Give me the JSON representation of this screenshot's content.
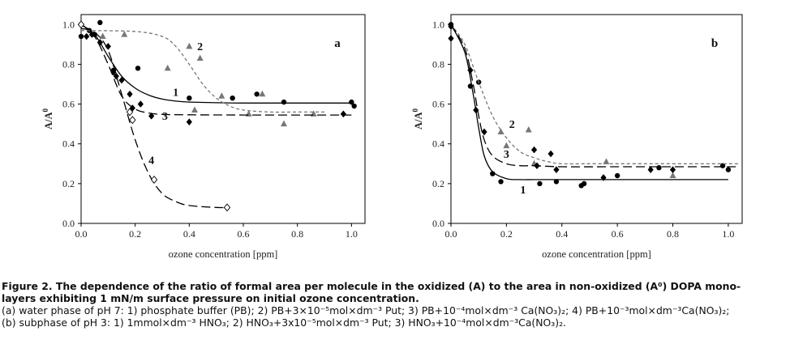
{
  "chart_data": [
    {
      "type": "scatter",
      "panel_label": "a",
      "xlabel": "ozone concentration [ppm]",
      "ylabel": "A/A",
      "ylabel_sup": "0",
      "xlim": [
        0,
        1.05
      ],
      "ylim": [
        0,
        1.05
      ],
      "xticks": [
        0.0,
        0.2,
        0.4,
        0.6,
        0.8,
        1.0
      ],
      "xtick_labels": [
        "0.0",
        "0.2",
        "0.4",
        "0.6",
        "0.8",
        "1.0"
      ],
      "yticks": [
        0.0,
        0.2,
        0.4,
        0.6,
        0.8,
        1.0
      ],
      "ytick_labels": [
        "0.0",
        "0.2",
        "0.4",
        "0.6",
        "0.8",
        "1.0"
      ],
      "grid": false,
      "series": [
        {
          "name": "1",
          "marker": "circle",
          "x": [
            0.0,
            0.03,
            0.05,
            0.07,
            0.12,
            0.21,
            0.4,
            0.56,
            0.65,
            0.75,
            1.0,
            1.01
          ],
          "y": [
            0.94,
            0.97,
            0.95,
            1.01,
            0.77,
            0.78,
            0.63,
            0.63,
            0.65,
            0.61,
            0.61,
            0.59
          ],
          "fit": {
            "x": [
              0.0,
              0.05,
              0.1,
              0.15,
              0.2,
              0.25,
              0.3,
              0.35,
              0.4,
              0.5,
              0.6,
              0.8,
              1.0
            ],
            "y": [
              1.0,
              0.95,
              0.84,
              0.74,
              0.68,
              0.645,
              0.625,
              0.615,
              0.61,
              0.607,
              0.605,
              0.605,
              0.605
            ]
          },
          "label_at": [
            0.35,
            0.64
          ],
          "line_style": "solid"
        },
        {
          "name": "2",
          "marker": "triangle",
          "x": [
            0.08,
            0.16,
            0.32,
            0.4,
            0.42,
            0.44,
            0.52,
            0.62,
            0.67,
            0.75,
            0.86
          ],
          "y": [
            0.94,
            0.95,
            0.78,
            0.89,
            0.57,
            0.83,
            0.64,
            0.55,
            0.65,
            0.5,
            0.55
          ],
          "fit": {
            "x": [
              0.0,
              0.2,
              0.3,
              0.35,
              0.4,
              0.45,
              0.5,
              0.55,
              0.6,
              0.7,
              0.8,
              0.9
            ],
            "y": [
              0.97,
              0.965,
              0.94,
              0.89,
              0.8,
              0.7,
              0.63,
              0.59,
              0.57,
              0.56,
              0.56,
              0.56
            ]
          },
          "label_at": [
            0.44,
            0.87
          ],
          "line_style": "short-dash"
        },
        {
          "name": "3",
          "marker": "diamond",
          "x": [
            0.02,
            0.04,
            0.07,
            0.1,
            0.12,
            0.13,
            0.15,
            0.18,
            0.19,
            0.22,
            0.26,
            0.4,
            0.97
          ],
          "y": [
            0.94,
            0.95,
            0.91,
            0.89,
            0.76,
            0.74,
            0.72,
            0.65,
            0.58,
            0.6,
            0.54,
            0.51,
            0.55
          ],
          "fit": {
            "x": [
              0.0,
              0.05,
              0.1,
              0.15,
              0.2,
              0.25,
              0.3,
              0.4,
              0.6,
              0.8,
              1.0
            ],
            "y": [
              1.0,
              0.94,
              0.8,
              0.64,
              0.575,
              0.555,
              0.548,
              0.546,
              0.545,
              0.545,
              0.545
            ]
          },
          "label_at": [
            0.31,
            0.52
          ],
          "line_style": "long-dash"
        },
        {
          "name": "4",
          "marker": "open-diamond",
          "x": [
            0.0,
            0.18,
            0.19,
            0.27,
            0.54
          ],
          "y": [
            1.0,
            0.56,
            0.52,
            0.22,
            0.08
          ],
          "fit": {
            "x": [
              0.0,
              0.05,
              0.1,
              0.15,
              0.2,
              0.25,
              0.3,
              0.35,
              0.4,
              0.5,
              0.54
            ],
            "y": [
              0.98,
              0.96,
              0.87,
              0.65,
              0.42,
              0.25,
              0.15,
              0.11,
              0.09,
              0.08,
              0.08
            ]
          },
          "label_at": [
            0.26,
            0.3
          ],
          "line_style": "long-dash"
        }
      ]
    },
    {
      "type": "scatter",
      "panel_label": "b",
      "xlabel": "ozone concentration [ppm]",
      "ylabel": "A/A",
      "ylabel_sup": "0",
      "xlim": [
        0,
        1.05
      ],
      "ylim": [
        0,
        1.05
      ],
      "xticks": [
        0.0,
        0.2,
        0.4,
        0.6,
        0.8,
        1.0
      ],
      "xtick_labels": [
        "0.0",
        "0.2",
        "0.4",
        "0.6",
        "0.8",
        "1.0"
      ],
      "yticks": [
        0.0,
        0.2,
        0.4,
        0.6,
        0.8,
        1.0
      ],
      "ytick_labels": [
        "0.0",
        "0.2",
        "0.4",
        "0.6",
        "0.8",
        "1.0"
      ],
      "grid": false,
      "series": [
        {
          "name": "1",
          "marker": "circle",
          "x": [
            0.0,
            0.07,
            0.1,
            0.15,
            0.18,
            0.32,
            0.38,
            0.47,
            0.48,
            0.6,
            0.75,
            0.98,
            1.0
          ],
          "y": [
            1.0,
            0.69,
            0.71,
            0.25,
            0.21,
            0.2,
            0.21,
            0.19,
            0.2,
            0.24,
            0.28,
            0.29,
            0.27
          ],
          "fit": {
            "x": [
              0.0,
              0.05,
              0.08,
              0.1,
              0.12,
              0.15,
              0.2,
              0.25,
              0.3,
              0.4,
              0.6,
              0.8,
              1.0
            ],
            "y": [
              1.0,
              0.86,
              0.65,
              0.48,
              0.34,
              0.26,
              0.225,
              0.22,
              0.22,
              0.22,
              0.22,
              0.22,
              0.22
            ]
          },
          "label_at": [
            0.26,
            0.15
          ],
          "line_style": "solid"
        },
        {
          "name": "2",
          "marker": "triangle",
          "x": [
            0.18,
            0.2,
            0.28,
            0.3,
            0.56,
            0.8
          ],
          "y": [
            0.46,
            0.39,
            0.47,
            0.3,
            0.31,
            0.24
          ],
          "fit": {
            "x": [
              0.0,
              0.05,
              0.1,
              0.15,
              0.2,
              0.25,
              0.3,
              0.35,
              0.4,
              0.5,
              0.7,
              0.9,
              1.04
            ],
            "y": [
              1.0,
              0.9,
              0.71,
              0.54,
              0.43,
              0.36,
              0.33,
              0.31,
              0.3,
              0.3,
              0.3,
              0.3,
              0.3
            ]
          },
          "label_at": [
            0.22,
            0.48
          ],
          "line_style": "short-dash"
        },
        {
          "name": "3",
          "marker": "diamond",
          "x": [
            0.0,
            0.0,
            0.07,
            0.09,
            0.12,
            0.3,
            0.31,
            0.36,
            0.38,
            0.55,
            0.72,
            0.8
          ],
          "y": [
            0.93,
            0.99,
            0.77,
            0.57,
            0.46,
            0.37,
            0.29,
            0.35,
            0.27,
            0.23,
            0.27,
            0.27
          ],
          "fit": {
            "x": [
              0.0,
              0.05,
              0.08,
              0.1,
              0.12,
              0.15,
              0.2,
              0.25,
              0.3,
              0.4,
              0.6,
              0.8,
              1.04
            ],
            "y": [
              1.0,
              0.88,
              0.7,
              0.54,
              0.42,
              0.34,
              0.3,
              0.29,
              0.29,
              0.285,
              0.285,
              0.285,
              0.285
            ]
          },
          "label_at": [
            0.2,
            0.33
          ],
          "line_style": "long-dash"
        }
      ]
    }
  ],
  "caption": {
    "title_line1": "Figure 2. The dependence of the ratio of formal area per molecule in the oxidized (A) to the area in non-oxidized (A⁰) DOPA mono-",
    "title_line2": "layers exhibiting 1 mN/m surface pressure on initial ozone concentration.",
    "line_a": "(a) water phase of pH 7: 1) phosphate buffer (PB); 2) PB+3×10⁻⁵mol×dm⁻³ Put; 3) PB+10⁻⁴mol×dm⁻³ Ca(NO₃)₂; 4) PB+10⁻³mol×dm⁻³Ca(NO₃)₂;",
    "line_b": "(b) subphase of pH 3: 1) 1mmol×dm⁻³ HNO₃; 2) HNO₃+3x10⁻⁵mol×dm⁻³ Put; 3) HNO₃+10⁻⁴mol×dm⁻³Ca(NO₃)₂."
  }
}
